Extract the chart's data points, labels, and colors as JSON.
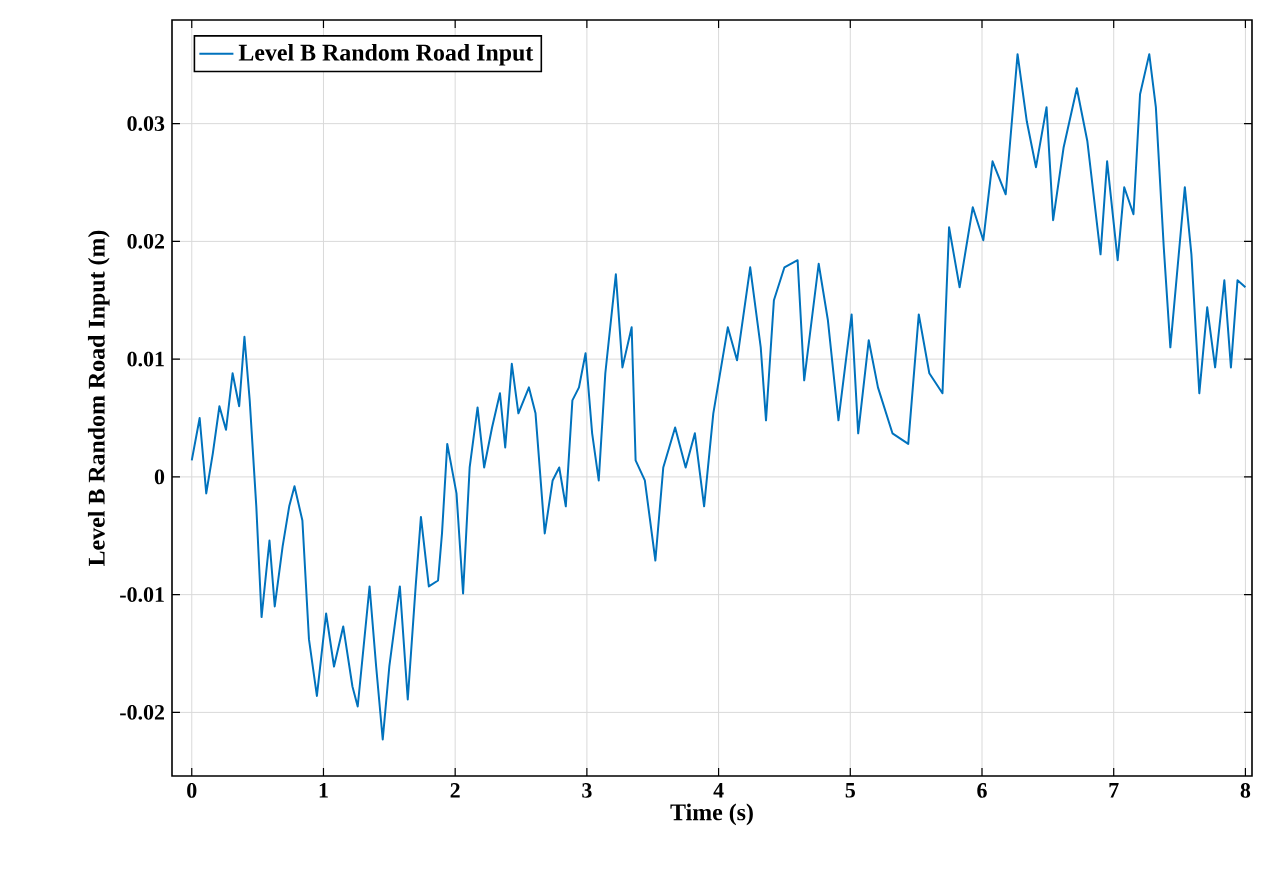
{
  "chart_data": {
    "type": "line",
    "xlabel": "Time (s)",
    "ylabel": "Level B Random Road Input (m)",
    "xlim": [
      -0.15,
      8.05
    ],
    "ylim": [
      -0.0254,
      0.0388
    ],
    "xticks": [
      0,
      1,
      2,
      3,
      4,
      5,
      6,
      7,
      8
    ],
    "yticks": [
      -0.02,
      -0.01,
      0,
      0.01,
      0.02,
      0.03
    ],
    "grid": true,
    "legend": "top left",
    "line_style": "solid",
    "marker": "none",
    "series": [
      {
        "name": "Level B Random Road Input",
        "color": "#0072bd",
        "x": [
          0,
          0.06,
          0.11,
          0.16,
          0.21,
          0.26,
          0.31,
          0.36,
          0.4,
          0.44,
          0.49,
          0.53,
          0.59,
          0.63,
          0.69,
          0.74,
          0.78,
          0.84,
          0.89,
          0.95,
          1.02,
          1.08,
          1.15,
          1.22,
          1.26,
          1.35,
          1.4,
          1.45,
          1.5,
          1.58,
          1.64,
          1.7,
          1.74,
          1.8,
          1.87,
          1.9,
          1.94,
          2.01,
          2.06,
          2.11,
          2.17,
          2.22,
          2.28,
          2.34,
          2.38,
          2.43,
          2.48,
          2.56,
          2.61,
          2.68,
          2.74,
          2.79,
          2.84,
          2.89,
          2.94,
          2.99,
          3.04,
          3.09,
          3.14,
          3.22,
          3.27,
          3.34,
          3.37,
          3.44,
          3.52,
          3.58,
          3.67,
          3.75,
          3.82,
          3.89,
          3.96,
          4.07,
          4.14,
          4.24,
          4.32,
          4.36,
          4.42,
          4.5,
          4.6,
          4.65,
          4.76,
          4.83,
          4.91,
          5.01,
          5.06,
          5.14,
          5.21,
          5.32,
          5.44,
          5.52,
          5.6,
          5.7,
          5.75,
          5.83,
          5.93,
          6.01,
          6.08,
          6.18,
          6.27,
          6.34,
          6.41,
          6.49,
          6.54,
          6.62,
          6.72,
          6.8,
          6.9,
          6.95,
          7.03,
          7.08,
          7.15,
          7.2,
          7.27,
          7.32,
          7.38,
          7.43,
          7.54,
          7.59,
          7.65,
          7.71,
          7.77,
          7.84,
          7.89,
          7.94,
          8.0
        ],
        "values": [
          0.0014,
          0.005,
          -0.0014,
          0.002,
          0.006,
          0.004,
          0.0088,
          0.006,
          0.0119,
          0.0065,
          -0.0025,
          -0.0119,
          -0.0054,
          -0.011,
          -0.0059,
          -0.0025,
          -0.0008,
          -0.0037,
          -0.0138,
          -0.0186,
          -0.0116,
          -0.0161,
          -0.0127,
          -0.0178,
          -0.0195,
          -0.0093,
          -0.0161,
          -0.0223,
          -0.0161,
          -0.0093,
          -0.0189,
          -0.0093,
          -0.0034,
          -0.0093,
          -0.0088,
          -0.0048,
          0.0028,
          -0.0014,
          -0.0099,
          0.0008,
          0.0059,
          0.0008,
          0.0042,
          0.0071,
          0.0025,
          0.0096,
          0.0054,
          0.0076,
          0.0054,
          -0.0048,
          -0.0003,
          0.0008,
          -0.0025,
          0.0065,
          0.0076,
          0.0105,
          0.0037,
          -0.0003,
          0.0088,
          0.0172,
          0.0093,
          0.0127,
          0.0014,
          -0.0003,
          -0.0071,
          0.0008,
          0.0042,
          0.0008,
          0.0037,
          -0.0025,
          0.0054,
          0.0127,
          0.0099,
          0.0178,
          0.011,
          0.0048,
          0.015,
          0.0178,
          0.0184,
          0.0082,
          0.0181,
          0.0133,
          0.0048,
          0.0138,
          0.0037,
          0.0116,
          0.0076,
          0.0037,
          0.0028,
          0.0138,
          0.0088,
          0.0071,
          0.0212,
          0.0161,
          0.0229,
          0.0201,
          0.0268,
          0.024,
          0.0359,
          0.0302,
          0.0263,
          0.0314,
          0.0218,
          0.028,
          0.033,
          0.0285,
          0.0189,
          0.0268,
          0.0184,
          0.0246,
          0.0223,
          0.0325,
          0.0359,
          0.0314,
          0.0195,
          0.011,
          0.0246,
          0.0189,
          0.0071,
          0.0144,
          0.0093,
          0.0167,
          0.0093,
          0.0167,
          0.0161
        ]
      }
    ]
  }
}
